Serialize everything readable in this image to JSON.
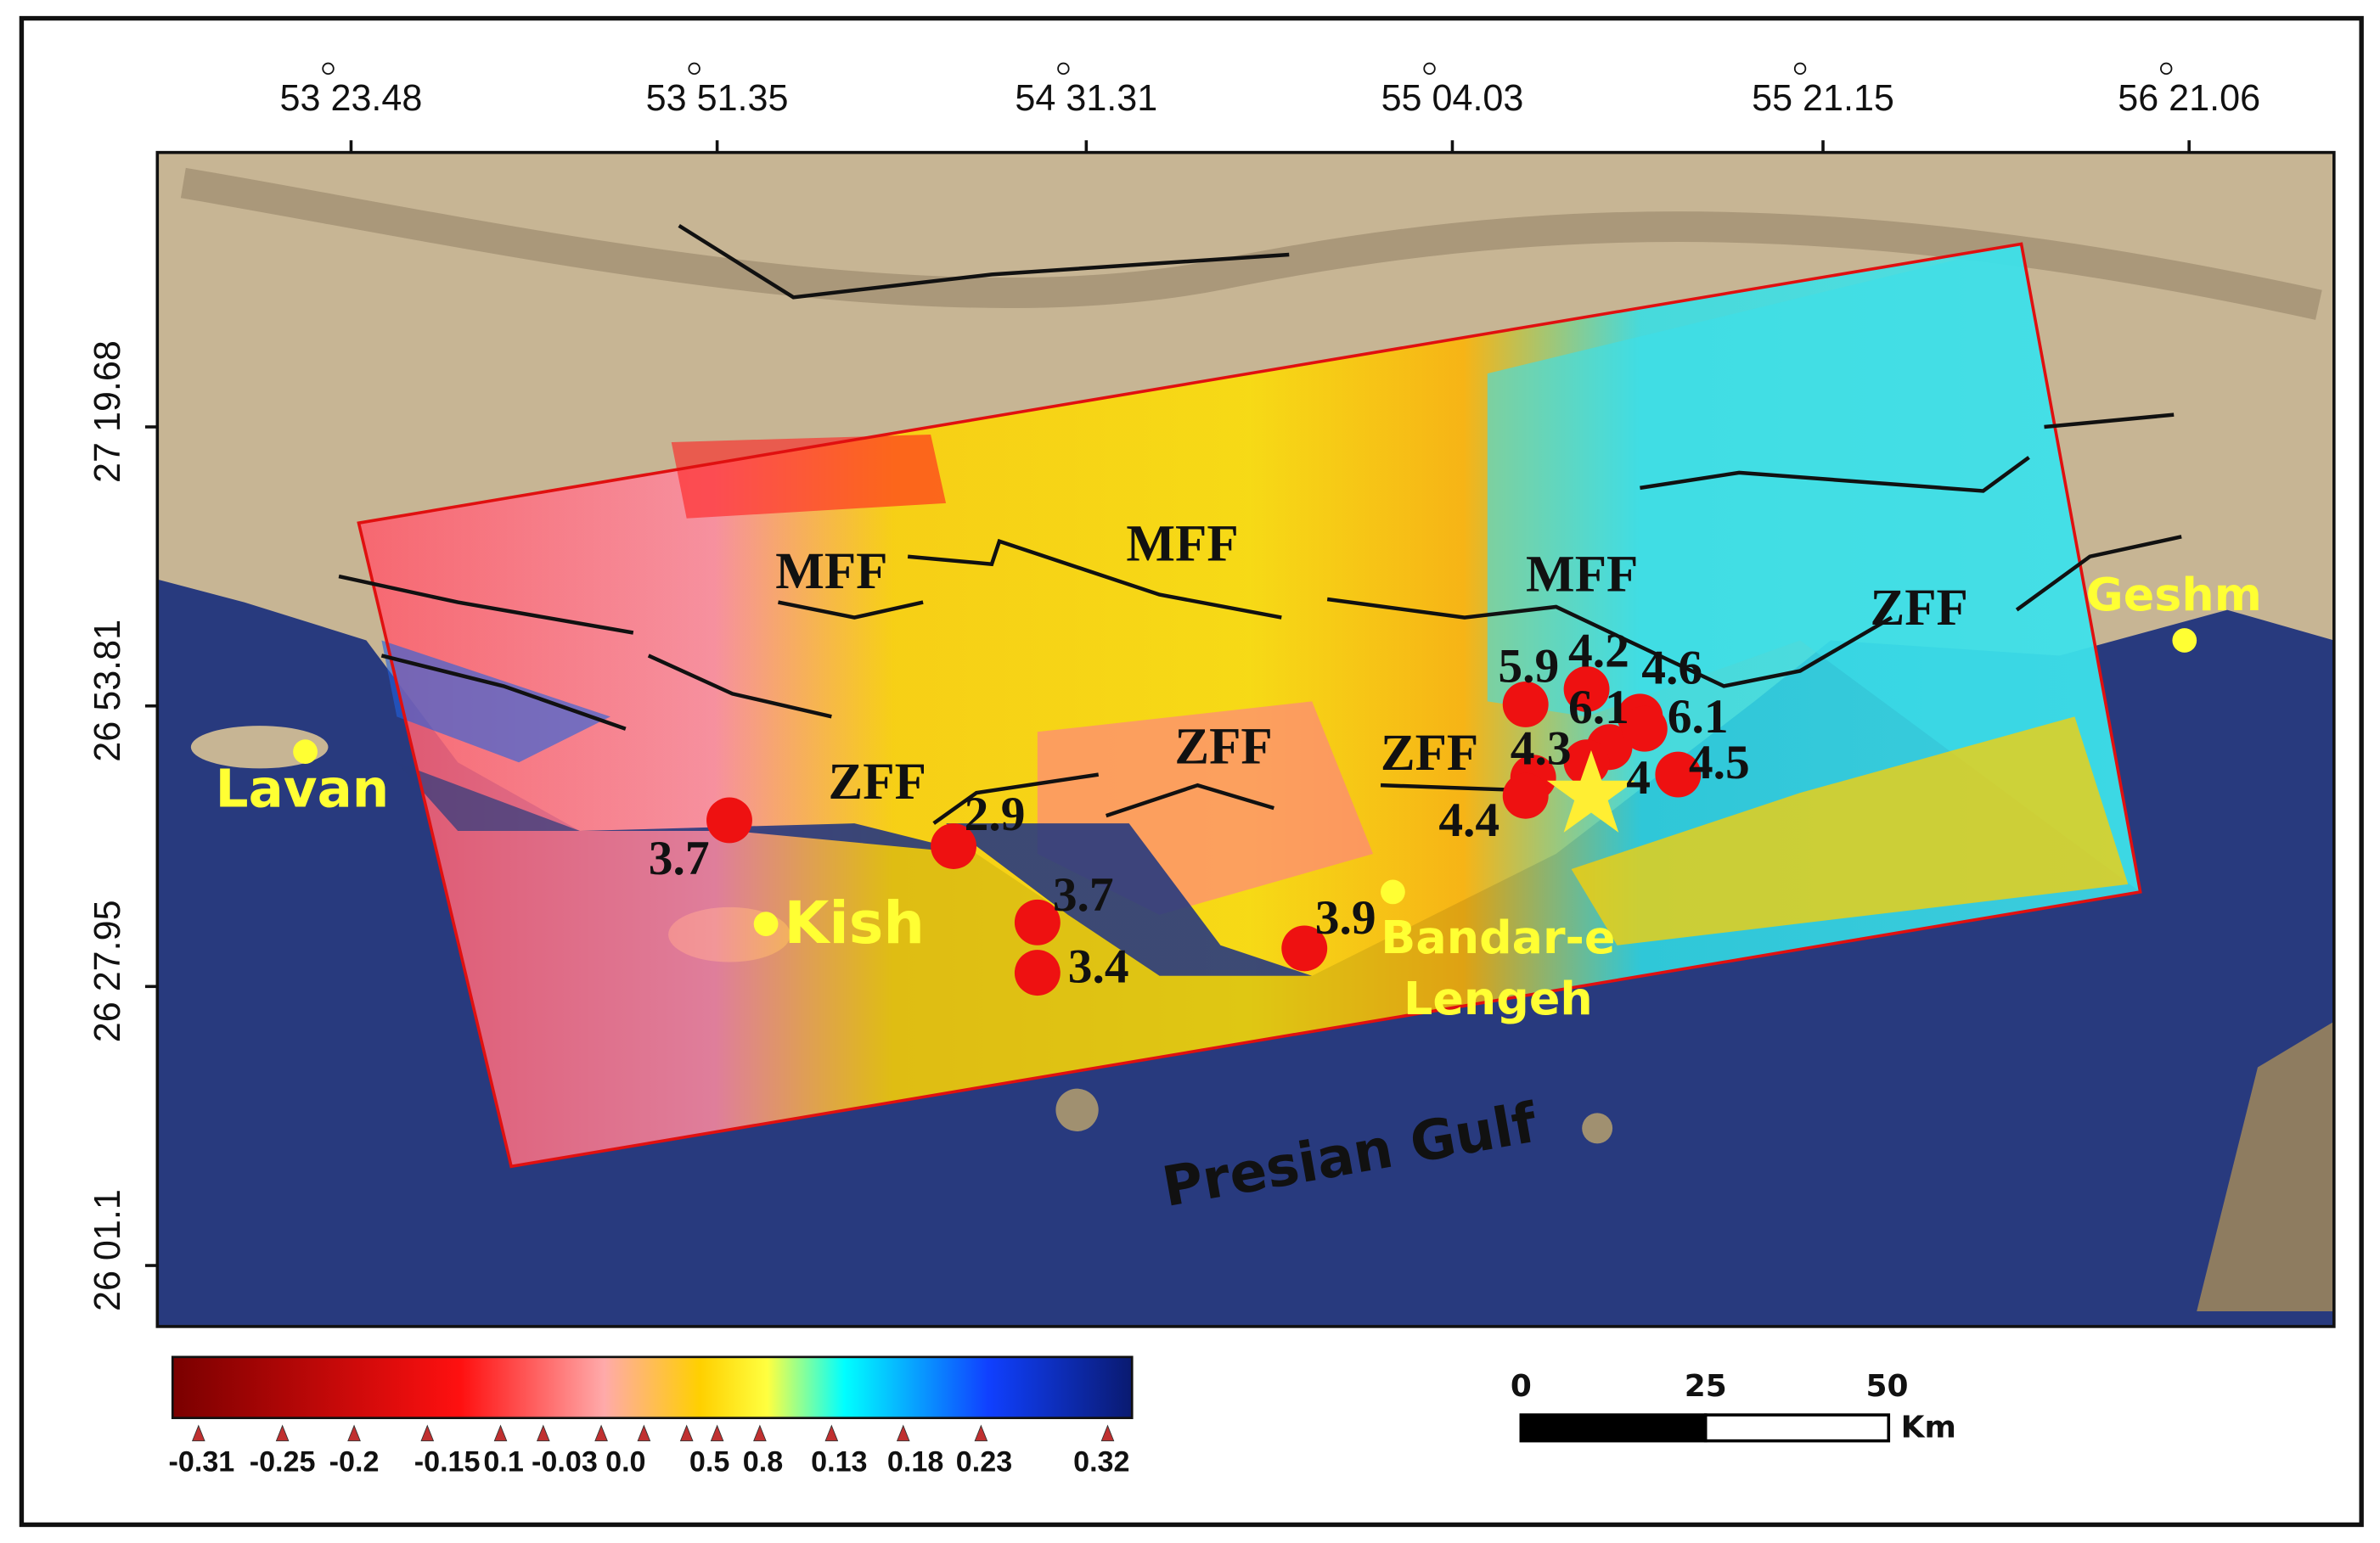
{
  "map": {
    "longitude_labels": [
      "53 23.48",
      "53 51.35",
      "54 31.31",
      "55 04.03",
      "55 21.15",
      "56 21.06"
    ],
    "latitude_labels": [
      "27 19.68",
      "26 53.81",
      "26 27.95",
      "26 01.1"
    ],
    "places": [
      {
        "lines": [
          "Lavan"
        ]
      },
      {
        "lines": [
          "Kish"
        ]
      },
      {
        "lines": [
          "Bandar-e",
          "Lengeh"
        ]
      },
      {
        "lines": [
          "Geshm"
        ]
      }
    ],
    "sea_label": "Presian Gulf",
    "fault_labels": [
      "MFF",
      "MFF",
      "MFF",
      "ZFF",
      "ZFF",
      "ZFF",
      "ZFF"
    ],
    "earthquakes": [
      3.7,
      2.9,
      3.7,
      3.4,
      3.9,
      5.9,
      4.2,
      4.6,
      6.1,
      6.1,
      4.3,
      4,
      4.5,
      4.4
    ],
    "colorbar_labels": [
      "-0.31",
      "-0.25",
      "-0.2",
      "-0.15",
      "0.1",
      "-0.03",
      "0.0",
      "0.5",
      "0.8",
      "0.13",
      "0.18",
      "0.23",
      "0.32"
    ],
    "scale_bar": {
      "labels": [
        "0",
        "25",
        "50"
      ],
      "unit": "Km"
    }
  }
}
